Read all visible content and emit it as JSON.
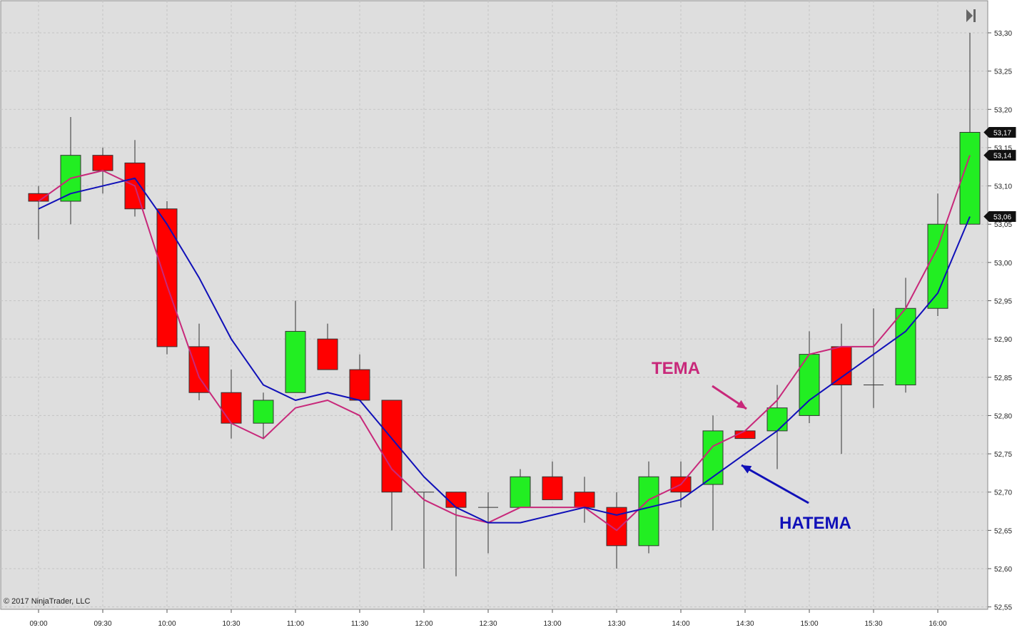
{
  "chart_data": {
    "type": "candlestick",
    "title": "",
    "xlabel": "",
    "ylabel": "",
    "ylim": [
      52.55,
      53.32
    ],
    "grid": true,
    "x_ticks": [
      "09:00",
      "09:30",
      "10:00",
      "10:30",
      "11:00",
      "11:30",
      "12:00",
      "12:30",
      "13:00",
      "13:30",
      "14:00",
      "14:30",
      "15:00",
      "15:30",
      "16:00"
    ],
    "y_ticks": [
      "52,55",
      "52,60",
      "52,65",
      "52,70",
      "52,75",
      "52,80",
      "52,85",
      "52,90",
      "52,95",
      "53,00",
      "53,05",
      "53,10",
      "53,15",
      "53,20",
      "53,25",
      "53,30"
    ],
    "y_tick_values": [
      52.55,
      52.6,
      52.65,
      52.7,
      52.75,
      52.8,
      52.85,
      52.9,
      52.95,
      53.0,
      53.05,
      53.1,
      53.15,
      53.2,
      53.25,
      53.3
    ],
    "bar_times": [
      "09:00",
      "09:15",
      "09:30",
      "09:45",
      "10:00",
      "10:15",
      "10:30",
      "10:45",
      "11:00",
      "11:15",
      "11:30",
      "11:45",
      "12:00",
      "12:15",
      "12:30",
      "12:45",
      "13:00",
      "13:15",
      "13:30",
      "13:45",
      "14:00",
      "14:15",
      "14:30",
      "14:45",
      "15:00",
      "15:15",
      "15:30",
      "15:45",
      "16:00",
      "16:15"
    ],
    "candles": [
      {
        "o": 53.09,
        "h": 53.1,
        "l": 53.03,
        "c": 53.08
      },
      {
        "o": 53.08,
        "h": 53.19,
        "l": 53.05,
        "c": 53.14
      },
      {
        "o": 53.14,
        "h": 53.15,
        "l": 53.09,
        "c": 53.12
      },
      {
        "o": 53.13,
        "h": 53.16,
        "l": 53.06,
        "c": 53.07
      },
      {
        "o": 53.07,
        "h": 53.08,
        "l": 52.88,
        "c": 52.89
      },
      {
        "o": 52.89,
        "h": 52.92,
        "l": 52.82,
        "c": 52.83
      },
      {
        "o": 52.83,
        "h": 52.86,
        "l": 52.77,
        "c": 52.79
      },
      {
        "o": 52.79,
        "h": 52.83,
        "l": 52.77,
        "c": 52.82
      },
      {
        "o": 52.83,
        "h": 52.95,
        "l": 52.83,
        "c": 52.91
      },
      {
        "o": 52.9,
        "h": 52.92,
        "l": 52.86,
        "c": 52.86
      },
      {
        "o": 52.86,
        "h": 52.88,
        "l": 52.82,
        "c": 52.82
      },
      {
        "o": 52.82,
        "h": 52.82,
        "l": 52.65,
        "c": 52.7
      },
      {
        "o": 52.7,
        "h": 52.7,
        "l": 52.6,
        "c": 52.7
      },
      {
        "o": 52.7,
        "h": 52.7,
        "l": 52.59,
        "c": 52.68
      },
      {
        "o": 52.68,
        "h": 52.7,
        "l": 52.62,
        "c": 52.68
      },
      {
        "o": 52.68,
        "h": 52.73,
        "l": 52.68,
        "c": 52.72
      },
      {
        "o": 52.72,
        "h": 52.74,
        "l": 52.69,
        "c": 52.69
      },
      {
        "o": 52.7,
        "h": 52.72,
        "l": 52.66,
        "c": 52.68
      },
      {
        "o": 52.68,
        "h": 52.7,
        "l": 52.6,
        "c": 52.63
      },
      {
        "o": 52.63,
        "h": 52.74,
        "l": 52.62,
        "c": 52.72
      },
      {
        "o": 52.72,
        "h": 52.74,
        "l": 52.68,
        "c": 52.7
      },
      {
        "o": 52.71,
        "h": 52.8,
        "l": 52.65,
        "c": 52.78
      },
      {
        "o": 52.78,
        "h": 52.78,
        "l": 52.77,
        "c": 52.77
      },
      {
        "o": 52.78,
        "h": 52.84,
        "l": 52.73,
        "c": 52.81
      },
      {
        "o": 52.8,
        "h": 52.91,
        "l": 52.79,
        "c": 52.88
      },
      {
        "o": 52.89,
        "h": 52.92,
        "l": 52.75,
        "c": 52.84
      },
      {
        "o": 52.84,
        "h": 52.94,
        "l": 52.81,
        "c": 52.84
      },
      {
        "o": 52.84,
        "h": 52.98,
        "l": 52.83,
        "c": 52.94
      },
      {
        "o": 52.94,
        "h": 53.09,
        "l": 52.93,
        "c": 53.05
      },
      {
        "o": 53.05,
        "h": 53.3,
        "l": 53.05,
        "c": 53.17
      }
    ],
    "series": [
      {
        "name": "TEMA",
        "color": "#c8287a",
        "values": [
          53.08,
          53.11,
          53.12,
          53.1,
          52.97,
          52.85,
          52.79,
          52.77,
          52.81,
          52.82,
          52.8,
          52.73,
          52.69,
          52.67,
          52.66,
          52.68,
          52.68,
          52.68,
          52.65,
          52.69,
          52.71,
          52.76,
          52.78,
          52.82,
          52.88,
          52.89,
          52.89,
          52.94,
          53.02,
          53.14
        ]
      },
      {
        "name": "HATEMA",
        "color": "#1010b8",
        "values": [
          53.07,
          53.09,
          53.1,
          53.11,
          53.05,
          52.98,
          52.9,
          52.84,
          52.82,
          52.83,
          52.82,
          52.77,
          52.72,
          52.68,
          52.66,
          52.66,
          52.67,
          52.68,
          52.67,
          52.68,
          52.69,
          52.72,
          52.75,
          52.78,
          52.82,
          52.85,
          52.88,
          52.91,
          52.96,
          53.06
        ]
      }
    ],
    "price_tags": [
      {
        "label": "53,17",
        "value": 53.17
      },
      {
        "label": "53,14",
        "value": 53.14
      },
      {
        "label": "53,06",
        "value": 53.06
      }
    ],
    "annotations": [
      {
        "text": "TEMA",
        "color": "#c8287a"
      },
      {
        "text": "HATEMA",
        "color": "#1010b8"
      }
    ],
    "up_color": "#22ee22",
    "down_color": "#ff0000",
    "background": "#dedede",
    "grid_color": "#c4c4c4"
  },
  "copyright": "© 2017 NinjaTrader, LLC"
}
